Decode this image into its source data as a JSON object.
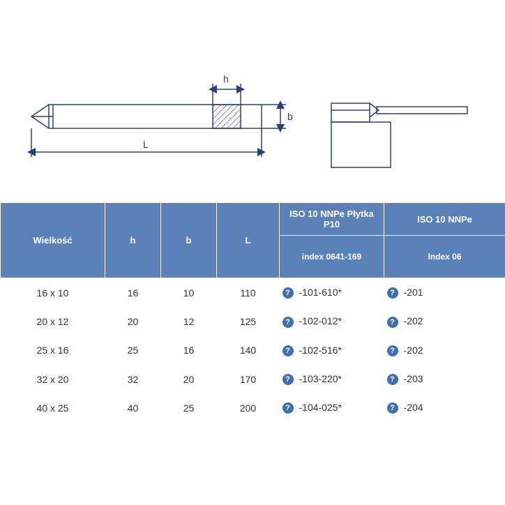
{
  "diagram": {
    "stroke": "#2a3f7a",
    "stroke_width": 1.5,
    "labels": {
      "h": "h",
      "b": "b",
      "L": "L"
    },
    "label_fontsize": 14
  },
  "table": {
    "header_bg": "#5b82b8",
    "header_fg": "#ffffff",
    "body_fg": "#333333",
    "columns": {
      "size": "Wielkość",
      "h": "h",
      "b": "b",
      "L": "L",
      "group1_top": "ISO 10 NNPe Płytka P10",
      "group1_sub": "index 0641-169",
      "group2_top": "ISO 10 NNPe",
      "group2_sub": "Index 06"
    },
    "rows": [
      {
        "size": "16 x 10",
        "h": "16",
        "b": "10",
        "L": "110",
        "idx1": "-101-610*",
        "idx2": "-201"
      },
      {
        "size": "20 x 12",
        "h": "20",
        "b": "12",
        "L": "125",
        "idx1": "-102-012*",
        "idx2": "-202"
      },
      {
        "size": "25 x 16",
        "h": "25",
        "b": "16",
        "L": "140",
        "idx1": "-102-516*",
        "idx2": "-202"
      },
      {
        "size": "32 x 20",
        "h": "32",
        "b": "20",
        "L": "170",
        "idx1": "-103-220*",
        "idx2": "-203"
      },
      {
        "size": "40 x 25",
        "h": "40",
        "b": "25",
        "L": "200",
        "idx1": "-104-025*",
        "idx2": "-204"
      }
    ],
    "help_symbol": "?"
  }
}
